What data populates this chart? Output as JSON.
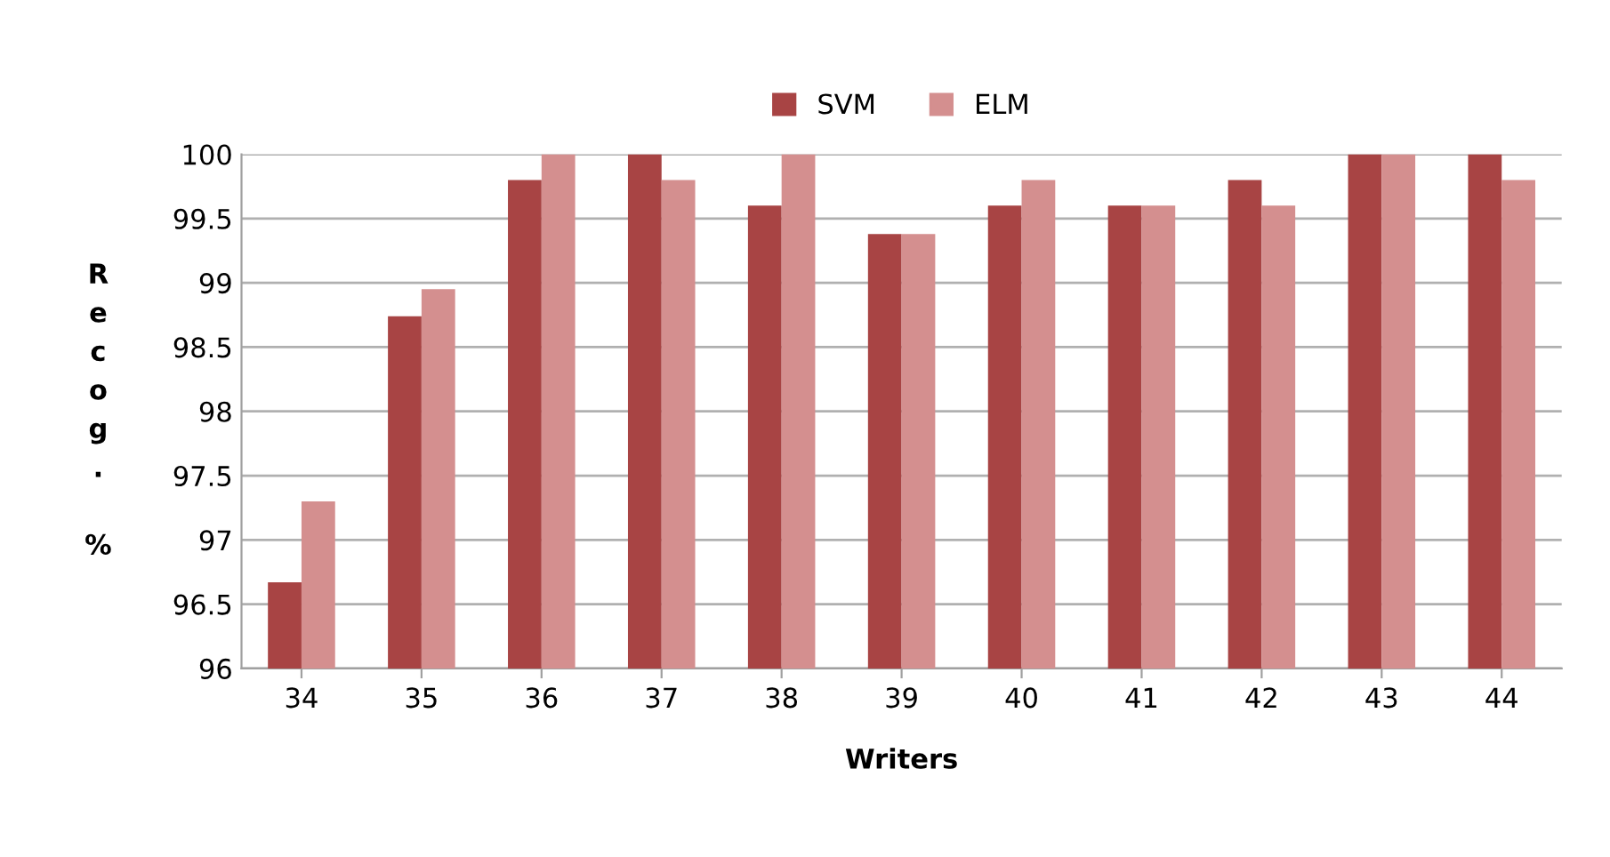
{
  "chart_data": {
    "type": "bar",
    "xlabel": "Writers",
    "ylabel": "Recog. %",
    "categories": [
      "34",
      "35",
      "36",
      "37",
      "38",
      "39",
      "40",
      "41",
      "42",
      "43",
      "44"
    ],
    "series": [
      {
        "name": "SVM",
        "color": "#a84444",
        "values": [
          96.67,
          98.74,
          99.8,
          100,
          99.6,
          99.38,
          99.6,
          99.6,
          99.8,
          100,
          100
        ]
      },
      {
        "name": "ELM",
        "color": "#d48f8f",
        "values": [
          97.3,
          98.95,
          100,
          99.8,
          100,
          99.38,
          99.8,
          99.6,
          99.6,
          100,
          99.8
        ]
      }
    ],
    "ylim": [
      96,
      100
    ],
    "yticks": [
      96,
      96.5,
      97,
      97.5,
      98,
      98.5,
      99,
      99.5,
      100
    ],
    "grid": "y",
    "legend": "top"
  }
}
